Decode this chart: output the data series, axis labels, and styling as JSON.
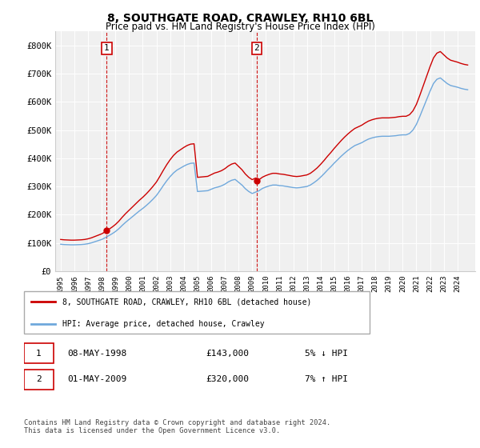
{
  "title": "8, SOUTHGATE ROAD, CRAWLEY, RH10 6BL",
  "subtitle": "Price paid vs. HM Land Registry's House Price Index (HPI)",
  "legend_line1": "8, SOUTHGATE ROAD, CRAWLEY, RH10 6BL (detached house)",
  "legend_line2": "HPI: Average price, detached house, Crawley",
  "transaction1_date": "08-MAY-1998",
  "transaction1_price": "£143,000",
  "transaction1_hpi": "5% ↓ HPI",
  "transaction2_date": "01-MAY-2009",
  "transaction2_price": "£320,000",
  "transaction2_hpi": "7% ↑ HPI",
  "footer": "Contains HM Land Registry data © Crown copyright and database right 2024.\nThis data is licensed under the Open Government Licence v3.0.",
  "hpi_color": "#6fa8dc",
  "price_color": "#cc0000",
  "marker_color": "#cc0000",
  "vline_color": "#cc0000",
  "ylim": [
    0,
    850000
  ],
  "yticks": [
    0,
    100000,
    200000,
    300000,
    400000,
    500000,
    600000,
    700000,
    800000
  ],
  "ytick_labels": [
    "£0",
    "£100K",
    "£200K",
    "£300K",
    "£400K",
    "£500K",
    "£600K",
    "£700K",
    "£800K"
  ],
  "transaction1_year": 1998.37,
  "transaction1_value": 143000,
  "transaction2_year": 2009.33,
  "transaction2_value": 320000,
  "background_color": "#f0f0f0",
  "years": [
    1995.0,
    1995.25,
    1995.5,
    1995.75,
    1996.0,
    1996.25,
    1996.5,
    1996.75,
    1997.0,
    1997.25,
    1997.5,
    1997.75,
    1998.0,
    1998.25,
    1998.5,
    1998.75,
    1999.0,
    1999.25,
    1999.5,
    1999.75,
    2000.0,
    2000.25,
    2000.5,
    2000.75,
    2001.0,
    2001.25,
    2001.5,
    2001.75,
    2002.0,
    2002.25,
    2002.5,
    2002.75,
    2003.0,
    2003.25,
    2003.5,
    2003.75,
    2004.0,
    2004.25,
    2004.5,
    2004.75,
    2005.0,
    2005.25,
    2005.5,
    2005.75,
    2006.0,
    2006.25,
    2006.5,
    2006.75,
    2007.0,
    2007.25,
    2007.5,
    2007.75,
    2008.0,
    2008.25,
    2008.5,
    2008.75,
    2009.0,
    2009.25,
    2009.5,
    2009.75,
    2010.0,
    2010.25,
    2010.5,
    2010.75,
    2011.0,
    2011.25,
    2011.5,
    2011.75,
    2012.0,
    2012.25,
    2012.5,
    2012.75,
    2013.0,
    2013.25,
    2013.5,
    2013.75,
    2014.0,
    2014.25,
    2014.5,
    2014.75,
    2015.0,
    2015.25,
    2015.5,
    2015.75,
    2016.0,
    2016.25,
    2016.5,
    2016.75,
    2017.0,
    2017.25,
    2017.5,
    2017.75,
    2018.0,
    2018.25,
    2018.5,
    2018.75,
    2019.0,
    2019.25,
    2019.5,
    2019.75,
    2020.0,
    2020.25,
    2020.5,
    2020.75,
    2021.0,
    2021.25,
    2021.5,
    2021.75,
    2022.0,
    2022.25,
    2022.5,
    2022.75,
    2023.0,
    2023.25,
    2023.5,
    2023.75,
    2024.0,
    2024.25,
    2024.5,
    2024.75
  ],
  "hpi_values": [
    95000,
    94000,
    93500,
    93000,
    93000,
    93500,
    94000,
    95000,
    97000,
    100000,
    104000,
    108000,
    112000,
    118000,
    125000,
    132000,
    140000,
    150000,
    162000,
    173000,
    183000,
    193000,
    203000,
    213000,
    222000,
    232000,
    243000,
    255000,
    268000,
    285000,
    303000,
    320000,
    335000,
    348000,
    358000,
    365000,
    372000,
    378000,
    382000,
    383000,
    282000,
    283000,
    284000,
    285000,
    290000,
    295000,
    298000,
    302000,
    308000,
    316000,
    322000,
    325000,
    315000,
    305000,
    292000,
    282000,
    275000,
    280000,
    285000,
    293000,
    298000,
    302000,
    305000,
    305000,
    303000,
    302000,
    300000,
    298000,
    296000,
    295000,
    296000,
    298000,
    300000,
    305000,
    313000,
    322000,
    333000,
    345000,
    358000,
    370000,
    383000,
    395000,
    407000,
    418000,
    428000,
    437000,
    445000,
    450000,
    455000,
    462000,
    468000,
    472000,
    475000,
    477000,
    478000,
    478000,
    478000,
    479000,
    480000,
    482000,
    483000,
    483000,
    488000,
    500000,
    520000,
    548000,
    578000,
    608000,
    638000,
    665000,
    680000,
    685000,
    675000,
    665000,
    658000,
    655000,
    652000,
    648000,
    645000,
    643000
  ]
}
